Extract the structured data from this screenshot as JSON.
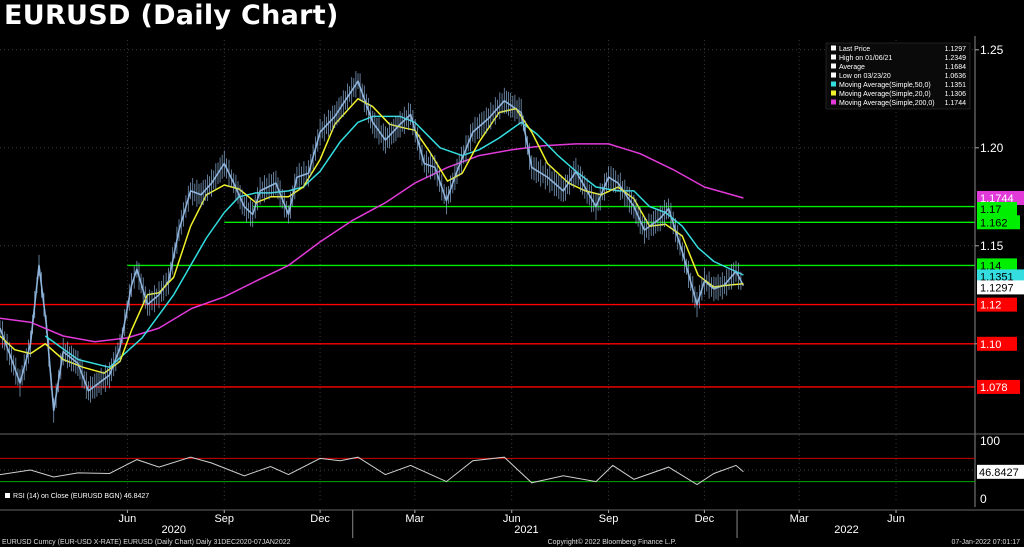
{
  "title": "EURUSD (Daily Chart)",
  "colors": {
    "background": "#000000",
    "price": "#8fb4dc",
    "ma50": "#33dde0",
    "ma20": "#f2f22a",
    "ma200": "#e13ad9",
    "support_red": "#ff0000",
    "resistance_green": "#00ee00",
    "rsi": "#cfcfcf"
  },
  "legend": [
    {
      "label": "Last Price",
      "value": "1.1297",
      "color": "#ffffff",
      "icon": "square-icon"
    },
    {
      "label": "High on 01/06/21",
      "value": "1.2349",
      "color": "#ffffff",
      "icon": "high-marker-icon"
    },
    {
      "label": "Average",
      "value": "1.1684",
      "color": "#ffffff",
      "icon": "plus-marker-icon"
    },
    {
      "label": "Low on 03/23/20",
      "value": "1.0636",
      "color": "#ffffff",
      "icon": "low-marker-icon"
    },
    {
      "label": "Moving Average(Simple,50,0)",
      "value": "1.1351",
      "color": "#33dde0",
      "icon": "square-icon"
    },
    {
      "label": "Moving Average(Simple,20,0)",
      "value": "1.1306",
      "color": "#f2f22a",
      "icon": "square-icon"
    },
    {
      "label": "Moving Average(Simple,200,0)",
      "value": "1.1744",
      "color": "#e13ad9",
      "icon": "square-icon"
    }
  ],
  "right_labels": [
    {
      "text": "1.1744",
      "color": "#e13ad9",
      "text_color": "#ffffff",
      "value": 1.1744
    },
    {
      "text": "1.17",
      "color": "#00ee00",
      "text_color": "#000000",
      "value": 1.17
    },
    {
      "text": "1.162",
      "color": "#00ee00",
      "text_color": "#000000",
      "value": 1.162
    },
    {
      "text": "1.14",
      "color": "#00ee00",
      "text_color": "#000000",
      "value": 1.14
    },
    {
      "text": "1.1351",
      "color": "#33dde0",
      "text_color": "#000000",
      "value": 1.1351
    },
    {
      "text": "1.1297",
      "color": "#ffffff",
      "text_color": "#000000",
      "value": 1.1297
    },
    {
      "text": "1.12",
      "color": "#ff0000",
      "text_color": "#ffffff",
      "value": 1.12
    },
    {
      "text": "1.10",
      "color": "#ff0000",
      "text_color": "#ffffff",
      "value": 1.1
    },
    {
      "text": "1.078",
      "color": "#ff0000",
      "text_color": "#ffffff",
      "value": 1.078
    }
  ],
  "rsi_panel": {
    "legend": "RSI (14)  on Close (EURUSD BGN) 46.8427",
    "last_label": "46.8427",
    "last_value": 46.8427,
    "upper_level": 70,
    "lower_level": 30,
    "yticks": [
      "100",
      "50",
      "0"
    ],
    "ylim": [
      0,
      100
    ]
  },
  "footer": {
    "left": "EURUSD Curncy (EUR-USD X-RATE) EURUSD (Daily Chart)  Daily 31DEC2020-07JAN2022",
    "center": "Copyright© 2022 Bloomberg Finance L.P.",
    "right": "07-Jan-2022 07:01:17"
  },
  "chart_data": {
    "type": "line",
    "title": "EURUSD (Daily Chart)",
    "xlabel": "",
    "ylabel": "",
    "ylim": [
      1.055,
      1.255
    ],
    "xlim": [
      "2020-02-01",
      "2022-08-15"
    ],
    "yticks": [
      "1.25",
      "1.20",
      "1.15",
      "1.10"
    ],
    "ytick_values": [
      1.25,
      1.2,
      1.15,
      1.1
    ],
    "xticks": [
      {
        "label": "Jun",
        "date": "2020-06-01"
      },
      {
        "label": "Sep",
        "date": "2020-09-01"
      },
      {
        "label": "Dec",
        "date": "2020-12-01"
      },
      {
        "label": "Mar",
        "date": "2021-03-01"
      },
      {
        "label": "Jun",
        "date": "2021-06-01"
      },
      {
        "label": "Sep",
        "date": "2021-09-01"
      },
      {
        "label": "Dec",
        "date": "2021-12-01"
      },
      {
        "label": "Mar",
        "date": "2022-03-01"
      },
      {
        "label": "Jun",
        "date": "2022-06-01"
      }
    ],
    "years": [
      {
        "label": "2020",
        "date": "2020-07-15"
      },
      {
        "label": "2021",
        "date": "2021-06-15"
      },
      {
        "label": "2022",
        "date": "2022-04-15"
      }
    ],
    "grid": true,
    "legend_position": "top-right",
    "series": [
      {
        "name": "Last Price",
        "color": "#8fb4dc",
        "points": [
          [
            "2020-02-01",
            1.108
          ],
          [
            "2020-02-10",
            1.095
          ],
          [
            "2020-02-20",
            1.08
          ],
          [
            "2020-03-01",
            1.1
          ],
          [
            "2020-03-09",
            1.14
          ],
          [
            "2020-03-16",
            1.11
          ],
          [
            "2020-03-23",
            1.066
          ],
          [
            "2020-04-01",
            1.096
          ],
          [
            "2020-04-15",
            1.09
          ],
          [
            "2020-04-25",
            1.076
          ],
          [
            "2020-05-05",
            1.08
          ],
          [
            "2020-05-15",
            1.084
          ],
          [
            "2020-05-25",
            1.098
          ],
          [
            "2020-06-05",
            1.13
          ],
          [
            "2020-06-10",
            1.138
          ],
          [
            "2020-06-20",
            1.12
          ],
          [
            "2020-07-01",
            1.125
          ],
          [
            "2020-07-10",
            1.132
          ],
          [
            "2020-07-20",
            1.158
          ],
          [
            "2020-07-31",
            1.178
          ],
          [
            "2020-08-10",
            1.176
          ],
          [
            "2020-08-20",
            1.182
          ],
          [
            "2020-09-01",
            1.192
          ],
          [
            "2020-09-10",
            1.182
          ],
          [
            "2020-09-20",
            1.17
          ],
          [
            "2020-09-28",
            1.166
          ],
          [
            "2020-10-05",
            1.178
          ],
          [
            "2020-10-20",
            1.182
          ],
          [
            "2020-11-01",
            1.166
          ],
          [
            "2020-11-09",
            1.185
          ],
          [
            "2020-11-20",
            1.187
          ],
          [
            "2020-12-01",
            1.208
          ],
          [
            "2020-12-15",
            1.216
          ],
          [
            "2021-01-06",
            1.234
          ],
          [
            "2021-01-20",
            1.213
          ],
          [
            "2021-02-01",
            1.204
          ],
          [
            "2021-02-15",
            1.212
          ],
          [
            "2021-02-25",
            1.217
          ],
          [
            "2021-03-10",
            1.192
          ],
          [
            "2021-03-20",
            1.19
          ],
          [
            "2021-03-31",
            1.173
          ],
          [
            "2021-04-10",
            1.188
          ],
          [
            "2021-04-25",
            1.208
          ],
          [
            "2021-05-10",
            1.215
          ],
          [
            "2021-05-25",
            1.224
          ],
          [
            "2021-06-10",
            1.218
          ],
          [
            "2021-06-20",
            1.19
          ],
          [
            "2021-07-05",
            1.185
          ],
          [
            "2021-07-20",
            1.178
          ],
          [
            "2021-08-01",
            1.188
          ],
          [
            "2021-08-20",
            1.17
          ],
          [
            "2021-09-01",
            1.185
          ],
          [
            "2021-09-10",
            1.182
          ],
          [
            "2021-09-25",
            1.17
          ],
          [
            "2021-10-05",
            1.158
          ],
          [
            "2021-10-20",
            1.164
          ],
          [
            "2021-10-28",
            1.169
          ],
          [
            "2021-11-10",
            1.147
          ],
          [
            "2021-11-24",
            1.12
          ],
          [
            "2021-12-01",
            1.132
          ],
          [
            "2021-12-10",
            1.128
          ],
          [
            "2021-12-20",
            1.13
          ],
          [
            "2021-12-31",
            1.137
          ],
          [
            "2022-01-07",
            1.1297
          ]
        ]
      },
      {
        "name": "Moving Average(Simple,20,0)",
        "color": "#f2f22a",
        "points": [
          [
            "2020-02-01",
            1.104
          ],
          [
            "2020-02-15",
            1.097
          ],
          [
            "2020-03-01",
            1.095
          ],
          [
            "2020-03-15",
            1.1
          ],
          [
            "2020-04-01",
            1.092
          ],
          [
            "2020-04-20",
            1.088
          ],
          [
            "2020-05-10",
            1.085
          ],
          [
            "2020-05-25",
            1.091
          ],
          [
            "2020-06-05",
            1.107
          ],
          [
            "2020-06-20",
            1.125
          ],
          [
            "2020-07-01",
            1.126
          ],
          [
            "2020-07-15",
            1.134
          ],
          [
            "2020-07-31",
            1.16
          ],
          [
            "2020-08-15",
            1.176
          ],
          [
            "2020-09-01",
            1.181
          ],
          [
            "2020-09-15",
            1.179
          ],
          [
            "2020-10-01",
            1.172
          ],
          [
            "2020-10-15",
            1.175
          ],
          [
            "2020-11-01",
            1.175
          ],
          [
            "2020-11-15",
            1.18
          ],
          [
            "2020-12-01",
            1.194
          ],
          [
            "2020-12-15",
            1.212
          ],
          [
            "2021-01-06",
            1.225
          ],
          [
            "2021-01-20",
            1.221
          ],
          [
            "2021-02-05",
            1.212
          ],
          [
            "2021-02-20",
            1.21
          ],
          [
            "2021-03-01",
            1.209
          ],
          [
            "2021-03-15",
            1.198
          ],
          [
            "2021-04-01",
            1.183
          ],
          [
            "2021-04-15",
            1.187
          ],
          [
            "2021-05-01",
            1.203
          ],
          [
            "2021-05-20",
            1.218
          ],
          [
            "2021-06-05",
            1.22
          ],
          [
            "2021-06-20",
            1.208
          ],
          [
            "2021-07-05",
            1.192
          ],
          [
            "2021-07-25",
            1.182
          ],
          [
            "2021-08-10",
            1.178
          ],
          [
            "2021-08-25",
            1.176
          ],
          [
            "2021-09-10",
            1.18
          ],
          [
            "2021-09-25",
            1.174
          ],
          [
            "2021-10-10",
            1.16
          ],
          [
            "2021-10-25",
            1.161
          ],
          [
            "2021-11-10",
            1.155
          ],
          [
            "2021-11-25",
            1.135
          ],
          [
            "2021-12-10",
            1.129
          ],
          [
            "2021-12-25",
            1.13
          ],
          [
            "2022-01-07",
            1.1306
          ]
        ]
      },
      {
        "name": "Moving Average(Simple,50,0)",
        "color": "#33dde0",
        "points": [
          [
            "2020-03-15",
            1.104
          ],
          [
            "2020-04-15",
            1.092
          ],
          [
            "2020-05-15",
            1.088
          ],
          [
            "2020-06-15",
            1.103
          ],
          [
            "2020-07-15",
            1.125
          ],
          [
            "2020-08-15",
            1.154
          ],
          [
            "2020-09-01",
            1.167
          ],
          [
            "2020-09-15",
            1.175
          ],
          [
            "2020-10-01",
            1.177
          ],
          [
            "2020-10-15",
            1.177
          ],
          [
            "2020-11-01",
            1.178
          ],
          [
            "2020-11-15",
            1.18
          ],
          [
            "2020-12-01",
            1.188
          ],
          [
            "2020-12-20",
            1.203
          ],
          [
            "2021-01-06",
            1.213
          ],
          [
            "2021-01-20",
            1.216
          ],
          [
            "2021-02-15",
            1.216
          ],
          [
            "2021-03-01",
            1.213
          ],
          [
            "2021-03-25",
            1.2
          ],
          [
            "2021-04-15",
            1.196
          ],
          [
            "2021-05-01",
            1.199
          ],
          [
            "2021-05-20",
            1.205
          ],
          [
            "2021-06-10",
            1.213
          ],
          [
            "2021-06-25",
            1.207
          ],
          [
            "2021-07-15",
            1.196
          ],
          [
            "2021-08-01",
            1.188
          ],
          [
            "2021-08-20",
            1.18
          ],
          [
            "2021-09-10",
            1.178
          ],
          [
            "2021-09-25",
            1.178
          ],
          [
            "2021-10-10",
            1.17
          ],
          [
            "2021-10-25",
            1.167
          ],
          [
            "2021-11-10",
            1.16
          ],
          [
            "2021-11-25",
            1.149
          ],
          [
            "2021-12-10",
            1.142
          ],
          [
            "2022-01-07",
            1.1351
          ]
        ]
      },
      {
        "name": "Moving Average(Simple,200,0)",
        "color": "#e13ad9",
        "points": [
          [
            "2020-02-01",
            1.113
          ],
          [
            "2020-03-01",
            1.111
          ],
          [
            "2020-04-01",
            1.104
          ],
          [
            "2020-05-01",
            1.101
          ],
          [
            "2020-06-01",
            1.103
          ],
          [
            "2020-07-01",
            1.108
          ],
          [
            "2020-08-01",
            1.118
          ],
          [
            "2020-09-01",
            1.124
          ],
          [
            "2020-10-01",
            1.132
          ],
          [
            "2020-11-01",
            1.14
          ],
          [
            "2020-12-01",
            1.152
          ],
          [
            "2021-01-01",
            1.163
          ],
          [
            "2021-02-01",
            1.172
          ],
          [
            "2021-03-01",
            1.182
          ],
          [
            "2021-04-01",
            1.19
          ],
          [
            "2021-05-01",
            1.196
          ],
          [
            "2021-06-01",
            1.199
          ],
          [
            "2021-07-01",
            1.201
          ],
          [
            "2021-08-01",
            1.202
          ],
          [
            "2021-09-01",
            1.202
          ],
          [
            "2021-10-01",
            1.197
          ],
          [
            "2021-11-01",
            1.189
          ],
          [
            "2021-12-01",
            1.18
          ],
          [
            "2022-01-07",
            1.1744
          ]
        ]
      }
    ],
    "horizontal_lines": [
      {
        "value": 1.17,
        "color": "#00ee00",
        "from": "2020-09-28"
      },
      {
        "value": 1.162,
        "color": "#00ee00",
        "from": "2020-09-01"
      },
      {
        "value": 1.14,
        "color": "#00ee00",
        "from": "2020-06-01"
      },
      {
        "value": 1.12,
        "color": "#ff0000",
        "from": "2020-02-01"
      },
      {
        "value": 1.1,
        "color": "#ff0000",
        "from": "2020-02-01"
      },
      {
        "value": 1.078,
        "color": "#ff0000",
        "from": "2020-02-01"
      }
    ],
    "rsi": {
      "name": "RSI (14)",
      "points": [
        [
          "2020-02-01",
          42
        ],
        [
          "2020-03-01",
          50
        ],
        [
          "2020-03-23",
          38
        ],
        [
          "2020-04-15",
          45
        ],
        [
          "2020-05-15",
          44
        ],
        [
          "2020-06-10",
          68
        ],
        [
          "2020-07-01",
          55
        ],
        [
          "2020-07-31",
          72
        ],
        [
          "2020-08-20",
          62
        ],
        [
          "2020-09-20",
          40
        ],
        [
          "2020-10-15",
          56
        ],
        [
          "2020-11-01",
          42
        ],
        [
          "2020-12-01",
          70
        ],
        [
          "2020-12-20",
          66
        ],
        [
          "2021-01-06",
          72
        ],
        [
          "2021-02-01",
          42
        ],
        [
          "2021-02-25",
          58
        ],
        [
          "2021-03-31",
          30
        ],
        [
          "2021-04-25",
          66
        ],
        [
          "2021-05-25",
          72
        ],
        [
          "2021-06-20",
          28
        ],
        [
          "2021-07-20",
          40
        ],
        [
          "2021-08-20",
          30
        ],
        [
          "2021-09-05",
          58
        ],
        [
          "2021-09-25",
          34
        ],
        [
          "2021-10-28",
          55
        ],
        [
          "2021-11-24",
          25
        ],
        [
          "2021-12-10",
          44
        ],
        [
          "2021-12-31",
          58
        ],
        [
          "2022-01-07",
          46.8427
        ]
      ]
    }
  }
}
